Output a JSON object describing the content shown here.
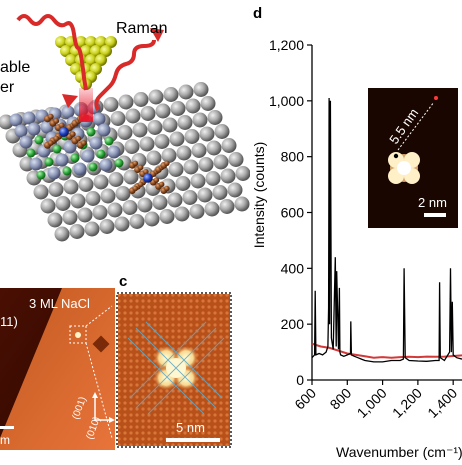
{
  "figure": {
    "panel_a": {
      "laser_text_line1": "able",
      "laser_text_line2": "er",
      "raman_label": "Raman"
    },
    "panel_b": {
      "label_nacl": "3 ML NaCl",
      "label_orientation": "11)",
      "dir_001": "(001)",
      "dir_010": "(010)",
      "scale_fragment": "m"
    },
    "panel_c": {
      "letter": "c",
      "scale_label": "5 nm"
    },
    "panel_d": {
      "letter": "d",
      "inset_distance": "5.5 nm",
      "inset_scale": "2 nm"
    }
  },
  "colors": {
    "raman_red": "#d92a2a",
    "spectrum_black": "#000000",
    "background_red": "#d23a3a",
    "stm_dark": "#3a0a00",
    "stm_orange": "#c8501a",
    "tip_yellow": "#c8cf18"
  },
  "chart_data": {
    "type": "line",
    "title": "",
    "xlabel": "Wavenumber (cm⁻¹)",
    "ylabel": "Intensity (counts)",
    "xlim": [
      600,
      1450
    ],
    "ylim": [
      0,
      1200
    ],
    "xticks": [
      "600",
      "800",
      "1,000",
      "1,200",
      "1,400"
    ],
    "yticks": [
      "0",
      "200",
      "400",
      "600",
      "800",
      "1,000",
      "1,200"
    ],
    "grid": false,
    "series": [
      {
        "color": "#000000",
        "x": [
          600,
          615,
          618,
          622,
          640,
          660,
          680,
          690,
          694,
          697,
          700,
          704,
          710,
          720,
          732,
          737,
          740,
          750,
          755,
          758,
          762,
          780,
          800,
          818,
          820,
          823,
          840,
          860,
          880,
          900,
          950,
          1000,
          1050,
          1100,
          1118,
          1122,
          1128,
          1150,
          1200,
          1250,
          1300,
          1320,
          1323,
          1327,
          1350,
          1380,
          1385,
          1390,
          1395,
          1400,
          1420,
          1450
        ],
        "y": [
          80,
          90,
          320,
          90,
          95,
          90,
          100,
          120,
          260,
          1010,
          200,
          1000,
          150,
          110,
          440,
          120,
          390,
          110,
          330,
          100,
          90,
          85,
          90,
          95,
          210,
          90,
          85,
          80,
          75,
          70,
          65,
          65,
          70,
          70,
          75,
          400,
          80,
          70,
          68,
          67,
          70,
          70,
          350,
          80,
          70,
          100,
          400,
          100,
          280,
          90,
          80,
          75
        ]
      },
      {
        "color": "#d23a3a",
        "x": [
          600,
          650,
          700,
          750,
          800,
          850,
          900,
          950,
          1000,
          1050,
          1100,
          1150,
          1200,
          1250,
          1300,
          1350,
          1400,
          1450
        ],
        "y": [
          130,
          120,
          115,
          105,
          95,
          90,
          85,
          80,
          82,
          80,
          82,
          83,
          82,
          84,
          83,
          84,
          86,
          88
        ]
      }
    ]
  }
}
